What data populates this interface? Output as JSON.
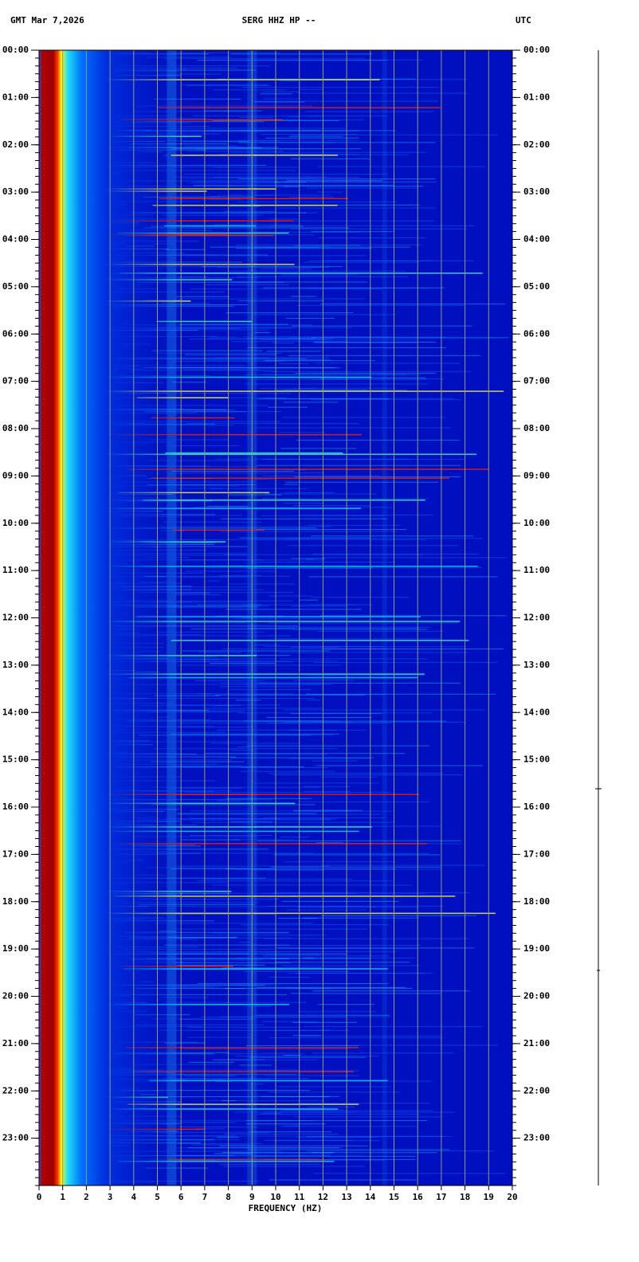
{
  "chart_data": {
    "type": "spectrogram",
    "title": "SERG HHZ HP --",
    "left_label": "GMT  Mar 7,2026",
    "right_label": "UTC",
    "x_label": "FREQUENCY (HZ)",
    "xlim": [
      0,
      20
    ],
    "xticks": [
      0,
      1,
      2,
      3,
      4,
      5,
      6,
      7,
      8,
      9,
      10,
      11,
      12,
      13,
      14,
      15,
      16,
      17,
      18,
      19,
      20
    ],
    "ylim": [
      0,
      24
    ],
    "yticks": [
      {
        "value": 0,
        "label": "00:00"
      },
      {
        "value": 1,
        "label": "01:00"
      },
      {
        "value": 2,
        "label": "02:00"
      },
      {
        "value": 3,
        "label": "03:00"
      },
      {
        "value": 4,
        "label": "04:00"
      },
      {
        "value": 5,
        "label": "05:00"
      },
      {
        "value": 6,
        "label": "06:00"
      },
      {
        "value": 7,
        "label": "07:00"
      },
      {
        "value": 8,
        "label": "08:00"
      },
      {
        "value": 9,
        "label": "09:00"
      },
      {
        "value": 10,
        "label": "10:00"
      },
      {
        "value": 11,
        "label": "11:00"
      },
      {
        "value": 12,
        "label": "12:00"
      },
      {
        "value": 13,
        "label": "13:00"
      },
      {
        "value": 14,
        "label": "14:00"
      },
      {
        "value": 15,
        "label": "15:00"
      },
      {
        "value": 16,
        "label": "16:00"
      },
      {
        "value": 17,
        "label": "17:00"
      },
      {
        "value": 18,
        "label": "18:00"
      },
      {
        "value": 19,
        "label": "19:00"
      },
      {
        "value": 20,
        "label": "20:00"
      },
      {
        "value": 21,
        "label": "21:00"
      },
      {
        "value": 22,
        "label": "22:00"
      },
      {
        "value": 23,
        "label": "23:00"
      }
    ],
    "grid": true,
    "grid_color": "#9a9a78",
    "background_color": "#0010c0"
  }
}
